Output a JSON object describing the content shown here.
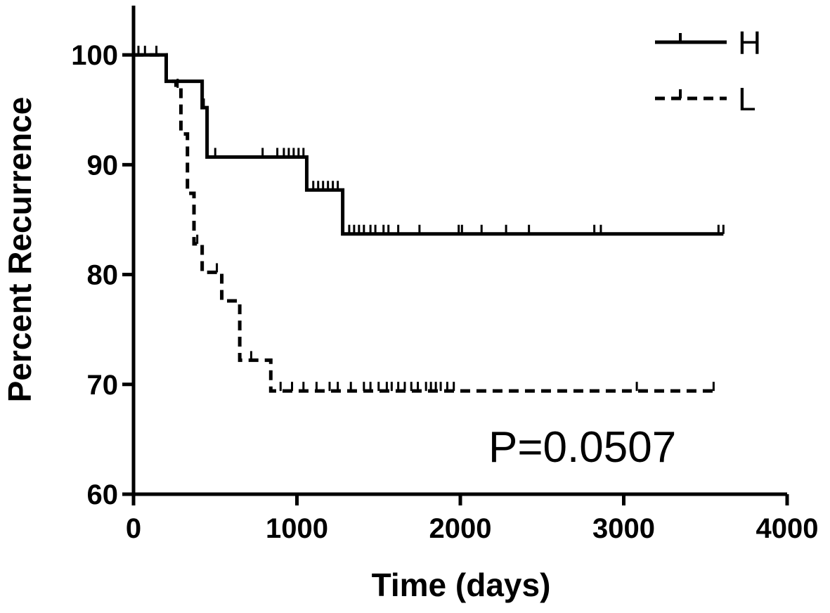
{
  "chart_data": {
    "type": "line",
    "title": "",
    "xlabel": "Time (days)",
    "ylabel": "Percent Recurrence",
    "xlim": [
      0,
      4000
    ],
    "ylim": [
      60,
      105
    ],
    "xticks": [
      0,
      1000,
      2000,
      3000,
      4000
    ],
    "yticks": [
      60,
      70,
      80,
      90,
      100
    ],
    "xtick_labels": [
      "0",
      "1000",
      "2000",
      "3000",
      "4000"
    ],
    "ytick_labels": [
      "60",
      "70",
      "80",
      "90",
      "100"
    ],
    "grid": false,
    "legend_position": "top-right",
    "annotation": "P=0.0507",
    "series": [
      {
        "name": "H",
        "style": "solid",
        "color": "#000000",
        "steps": [
          [
            0,
            100
          ],
          [
            200,
            97.6
          ],
          [
            420,
            95.2
          ],
          [
            450,
            90.7
          ],
          [
            1060,
            87.7
          ],
          [
            1280,
            83.7
          ],
          [
            3610,
            83.7
          ]
        ],
        "censored": [
          [
            30,
            100
          ],
          [
            70,
            100
          ],
          [
            140,
            100
          ],
          [
            430,
            95.2
          ],
          [
            500,
            90.7
          ],
          [
            790,
            90.7
          ],
          [
            880,
            90.7
          ],
          [
            920,
            90.7
          ],
          [
            950,
            90.7
          ],
          [
            980,
            90.7
          ],
          [
            1010,
            90.7
          ],
          [
            1040,
            90.7
          ],
          [
            1100,
            87.7
          ],
          [
            1130,
            87.7
          ],
          [
            1160,
            87.7
          ],
          [
            1190,
            87.7
          ],
          [
            1220,
            87.7
          ],
          [
            1250,
            87.7
          ],
          [
            1320,
            83.7
          ],
          [
            1350,
            83.7
          ],
          [
            1380,
            83.7
          ],
          [
            1410,
            83.7
          ],
          [
            1450,
            83.7
          ],
          [
            1480,
            83.7
          ],
          [
            1530,
            83.7
          ],
          [
            1560,
            83.7
          ],
          [
            1620,
            83.7
          ],
          [
            1750,
            83.7
          ],
          [
            1990,
            83.7
          ],
          [
            2010,
            83.7
          ],
          [
            2130,
            83.7
          ],
          [
            2280,
            83.7
          ],
          [
            2420,
            83.7
          ],
          [
            2820,
            83.7
          ],
          [
            2860,
            83.7
          ],
          [
            3580,
            83.7
          ],
          [
            3610,
            83.7
          ]
        ]
      },
      {
        "name": "L",
        "style": "dashed",
        "color": "#000000",
        "steps": [
          [
            0,
            100
          ],
          [
            200,
            97.6
          ],
          [
            260,
            97.0
          ],
          [
            290,
            92.8
          ],
          [
            330,
            87.4
          ],
          [
            370,
            82.8
          ],
          [
            420,
            80.2
          ],
          [
            540,
            77.6
          ],
          [
            650,
            72.2
          ],
          [
            840,
            69.4
          ],
          [
            3550,
            69.4
          ]
        ],
        "censored": [
          [
            270,
            97.0
          ],
          [
            390,
            82.8
          ],
          [
            510,
            80.2
          ],
          [
            720,
            72.2
          ],
          [
            900,
            69.4
          ],
          [
            970,
            69.4
          ],
          [
            1040,
            69.4
          ],
          [
            1120,
            69.4
          ],
          [
            1200,
            69.4
          ],
          [
            1250,
            69.4
          ],
          [
            1330,
            69.4
          ],
          [
            1410,
            69.4
          ],
          [
            1450,
            69.4
          ],
          [
            1500,
            69.4
          ],
          [
            1550,
            69.4
          ],
          [
            1580,
            69.4
          ],
          [
            1620,
            69.4
          ],
          [
            1660,
            69.4
          ],
          [
            1700,
            69.4
          ],
          [
            1740,
            69.4
          ],
          [
            1790,
            69.4
          ],
          [
            1820,
            69.4
          ],
          [
            1850,
            69.4
          ],
          [
            1880,
            69.4
          ],
          [
            1920,
            69.4
          ],
          [
            1960,
            69.4
          ],
          [
            3080,
            69.4
          ],
          [
            3550,
            69.4
          ]
        ]
      }
    ]
  }
}
